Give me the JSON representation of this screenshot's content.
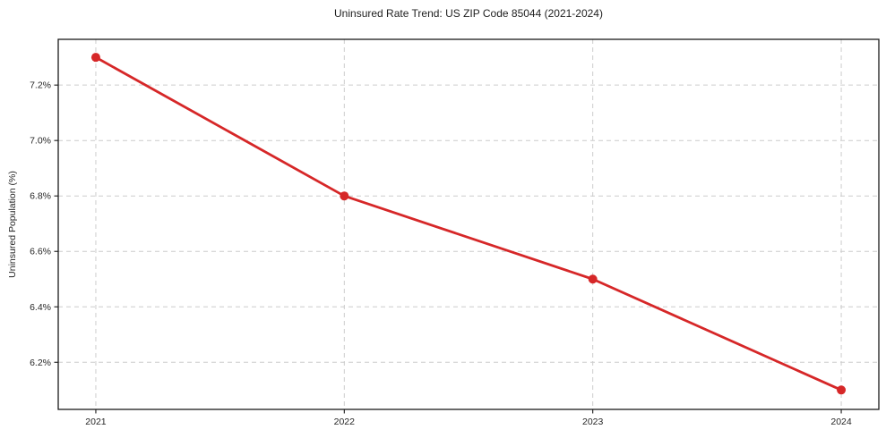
{
  "page": {
    "background": "#ffffff"
  },
  "chart_data": {
    "type": "line",
    "title": "Uninsured Rate Trend: US ZIP Code 85044 (2021-2024)",
    "xlabel": "",
    "ylabel": "Uninsured Population (%)",
    "categories": [
      "2021",
      "2022",
      "2023",
      "2024"
    ],
    "series": [
      {
        "name": "Uninsured rate",
        "values": [
          7.3,
          6.8,
          6.5,
          6.1
        ],
        "color": "#d62728"
      }
    ],
    "yticks": [
      {
        "value": 7.2,
        "label": "7.2%"
      },
      {
        "value": 7.0,
        "label": "7.0%"
      },
      {
        "value": 6.8,
        "label": "6.8%"
      },
      {
        "value": 6.6,
        "label": "6.6%"
      },
      {
        "value": 6.4,
        "label": "6.4%"
      },
      {
        "value": 6.2,
        "label": "6.2%"
      }
    ],
    "ylim": [
      6.03,
      7.365
    ],
    "grid": true,
    "grid_style": "dashed",
    "legend": false,
    "marker": "circle",
    "colors": {
      "line": "#d62728",
      "grid": "#cccccc",
      "spine": "#1a1a1a",
      "text": "#262626"
    }
  }
}
